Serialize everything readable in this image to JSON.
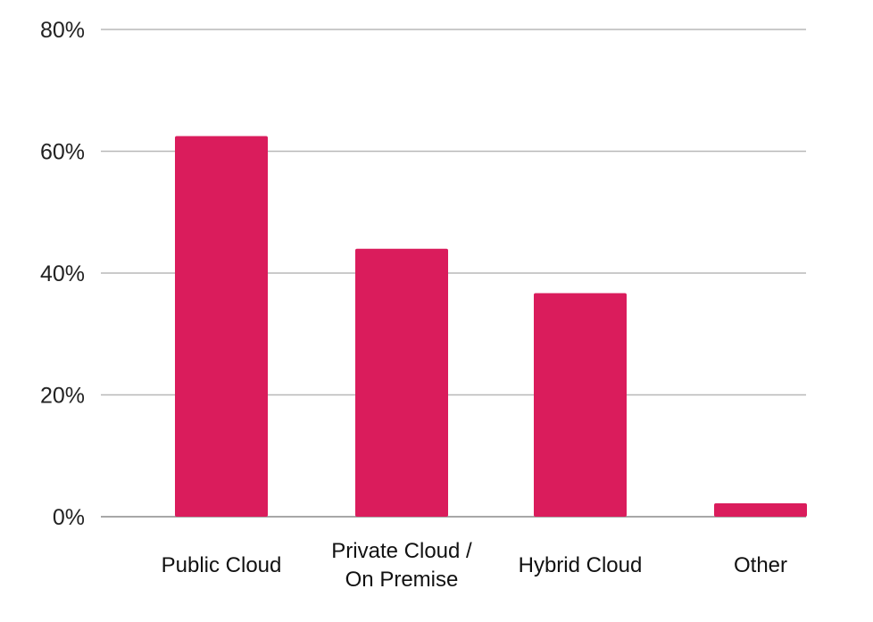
{
  "chart_data": {
    "type": "bar",
    "categories": [
      [
        "Public Cloud"
      ],
      [
        "Private Cloud /",
        "On Premise"
      ],
      [
        "Hybrid Cloud"
      ],
      [
        "Other"
      ]
    ],
    "values": [
      62.5,
      44,
      36.7,
      2.2
    ],
    "y_ticks": [
      "0%",
      "20%",
      "40%",
      "60%",
      "80%"
    ],
    "ylim": [
      0,
      80
    ],
    "grid": true,
    "colors": {
      "bar": "#da1c5c"
    }
  }
}
